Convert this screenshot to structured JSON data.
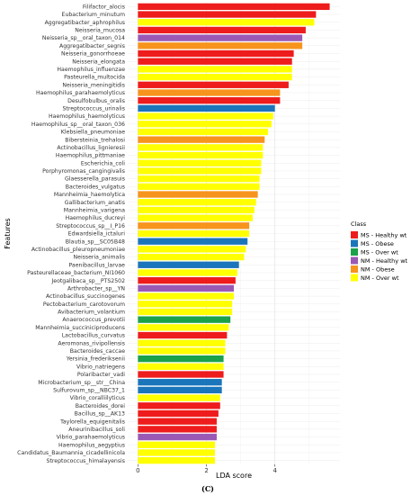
{
  "chart_data": {
    "type": "bar",
    "orientation": "horizontal",
    "xlabel": "LDA score",
    "ylabel": "Features",
    "xlim": [
      -0.3,
      5.9
    ],
    "xticks": [
      0,
      2,
      4
    ],
    "grid": true,
    "caption": "(C)",
    "legend": {
      "title": "Class",
      "placement": "right",
      "entries": [
        {
          "name": "MS - Healthy wt",
          "color": "#ee1c1c"
        },
        {
          "name": "MS - Obese",
          "color": "#1b75bb"
        },
        {
          "name": "MS - Over wt",
          "color": "#1aa14a"
        },
        {
          "name": "NM - Healthy wt",
          "color": "#9b59b6"
        },
        {
          "name": "NM - Obese",
          "color": "#f7941d"
        },
        {
          "name": "NM - Over wt",
          "color": "#ffff00"
        }
      ]
    },
    "bars": [
      {
        "label": "Filifactor_alocis",
        "value": 5.6,
        "class": 0
      },
      {
        "label": "Eubacterium_minutum",
        "value": 5.2,
        "class": 0
      },
      {
        "label": "Aggregatibacter_aphrophilus",
        "value": 5.15,
        "class": 5
      },
      {
        "label": "Neisseria_mucosa",
        "value": 4.9,
        "class": 0
      },
      {
        "label": "Neisseria_sp__oral_taxon_014",
        "value": 4.8,
        "class": 3
      },
      {
        "label": "Aggregatibacter_segnis",
        "value": 4.8,
        "class": 4
      },
      {
        "label": "Neisseria_gonorrhoeae",
        "value": 4.55,
        "class": 0
      },
      {
        "label": "Neisseria_elongata",
        "value": 4.5,
        "class": 0
      },
      {
        "label": "Haemophilus_influenzae",
        "value": 4.5,
        "class": 5
      },
      {
        "label": "Pasteurella_multocida",
        "value": 4.5,
        "class": 5
      },
      {
        "label": "Neisseria_meningitidis",
        "value": 4.4,
        "class": 0
      },
      {
        "label": "Haemophilus_parahaemolyticus",
        "value": 4.15,
        "class": 4
      },
      {
        "label": "Desulfobulbus_oralis",
        "value": 4.15,
        "class": 0
      },
      {
        "label": "Streptococcus_urinalis",
        "value": 4.0,
        "class": 1
      },
      {
        "label": "Haemophilus_haemolyticus",
        "value": 3.95,
        "class": 5
      },
      {
        "label": "Haemophilus_sp__oral_taxon_036",
        "value": 3.9,
        "class": 5
      },
      {
        "label": "Klebsiella_pneumoniae",
        "value": 3.8,
        "class": 5
      },
      {
        "label": "Bibersteinia_trehalosi",
        "value": 3.7,
        "class": 4
      },
      {
        "label": "Actinobacillus_lignieresii",
        "value": 3.65,
        "class": 5
      },
      {
        "label": "Haemophilus_pittmaniae",
        "value": 3.65,
        "class": 5
      },
      {
        "label": "Escherichia_coli",
        "value": 3.6,
        "class": 5
      },
      {
        "label": "Porphyromonas_cangingivalis",
        "value": 3.6,
        "class": 5
      },
      {
        "label": "Glaesserella_parasuis",
        "value": 3.55,
        "class": 5
      },
      {
        "label": "Bacteroides_vulgatus",
        "value": 3.55,
        "class": 5
      },
      {
        "label": "Mannheimia_haemolytica",
        "value": 3.5,
        "class": 4
      },
      {
        "label": "Gallibacterium_anatis",
        "value": 3.45,
        "class": 5
      },
      {
        "label": "Mannheimia_varigena",
        "value": 3.4,
        "class": 5
      },
      {
        "label": "Haemophilus_ducreyi",
        "value": 3.35,
        "class": 5
      },
      {
        "label": "Streptococcus_sp__I_P16",
        "value": 3.25,
        "class": 4
      },
      {
        "label": "Edwardsiella_ictaluri",
        "value": 3.25,
        "class": 5
      },
      {
        "label": "Blautia_sp__SC05B48",
        "value": 3.2,
        "class": 1
      },
      {
        "label": "Actinobacillus_pleuropneumoniae",
        "value": 3.15,
        "class": 5
      },
      {
        "label": "Neisseria_animalis",
        "value": 3.1,
        "class": 5
      },
      {
        "label": "Paenibacillus_larvae",
        "value": 2.95,
        "class": 1
      },
      {
        "label": "Pasteurellaceae_bacterium_NI1060",
        "value": 2.9,
        "class": 5
      },
      {
        "label": "Jeotgalibaca_sp__PTS2502",
        "value": 2.85,
        "class": 0
      },
      {
        "label": "Arthrobacter_sp__YN",
        "value": 2.8,
        "class": 3
      },
      {
        "label": "Actinobacillus_succinogenes",
        "value": 2.8,
        "class": 5
      },
      {
        "label": "Pectobacterium_carotovorum",
        "value": 2.75,
        "class": 5
      },
      {
        "label": "Avibacterium_volantium",
        "value": 2.75,
        "class": 5
      },
      {
        "label": "Anaerococcus_prevotii",
        "value": 2.7,
        "class": 2
      },
      {
        "label": "Mannheimia_succiniciproducens",
        "value": 2.65,
        "class": 5
      },
      {
        "label": "Lactobacillus_curvatus",
        "value": 2.6,
        "class": 0
      },
      {
        "label": "Aeromonas_rivipollensis",
        "value": 2.55,
        "class": 5
      },
      {
        "label": "Bacteroides_caccae",
        "value": 2.55,
        "class": 5
      },
      {
        "label": "Yersinia_frederiksenii",
        "value": 2.5,
        "class": 2
      },
      {
        "label": "Vibrio_natriegens",
        "value": 2.5,
        "class": 5
      },
      {
        "label": "Polaribacter_vadi",
        "value": 2.5,
        "class": 0
      },
      {
        "label": "Microbacterium_sp__str__China",
        "value": 2.45,
        "class": 1
      },
      {
        "label": "Sulfurovum_sp__NBC37_1",
        "value": 2.45,
        "class": 1
      },
      {
        "label": "Vibrio_coralliilyticus",
        "value": 2.4,
        "class": 5
      },
      {
        "label": "Bacteroides_dorei",
        "value": 2.4,
        "class": 0
      },
      {
        "label": "Bacillus_sp__AK13",
        "value": 2.35,
        "class": 0
      },
      {
        "label": "Taylorella_equigenitalis",
        "value": 2.3,
        "class": 0
      },
      {
        "label": "Aneurinibacillus_soli",
        "value": 2.3,
        "class": 0
      },
      {
        "label": "Vibrio_parahaemolyticus",
        "value": 2.3,
        "class": 3
      },
      {
        "label": "Haemophilus_aegyptius",
        "value": 2.25,
        "class": 5
      },
      {
        "label": "Candidatus_Baumannia_cicadellinicola",
        "value": 2.25,
        "class": 5
      },
      {
        "label": "Streptococcus_himalayensis",
        "value": 2.25,
        "class": 5
      }
    ]
  }
}
